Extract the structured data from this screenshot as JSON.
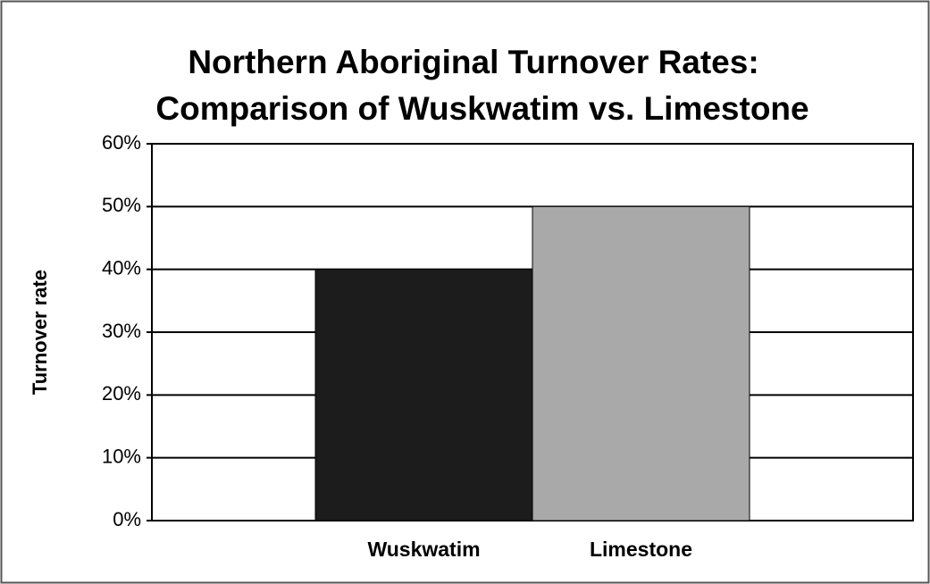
{
  "chart_data": {
    "type": "bar",
    "title": [
      "Northern Aboriginal Turnover Rates:",
      "Comparison of Wuskwatim vs. Limestone"
    ],
    "y_label": "Turnover rate",
    "categories": [
      "Wuskwatim",
      "Limestone"
    ],
    "values": [
      40,
      50
    ],
    "colors": [
      "#1c1c1c",
      "#a9a9a9"
    ],
    "ylim": [
      0,
      60
    ],
    "yticks": [
      {
        "value": 0,
        "label": "0%"
      },
      {
        "value": 10,
        "label": "10%"
      },
      {
        "value": 20,
        "label": "20%"
      },
      {
        "value": 30,
        "label": "30%"
      },
      {
        "value": 40,
        "label": "40%"
      },
      {
        "value": 50,
        "label": "50%"
      },
      {
        "value": 60,
        "label": "60%"
      }
    ],
    "grid": true
  }
}
